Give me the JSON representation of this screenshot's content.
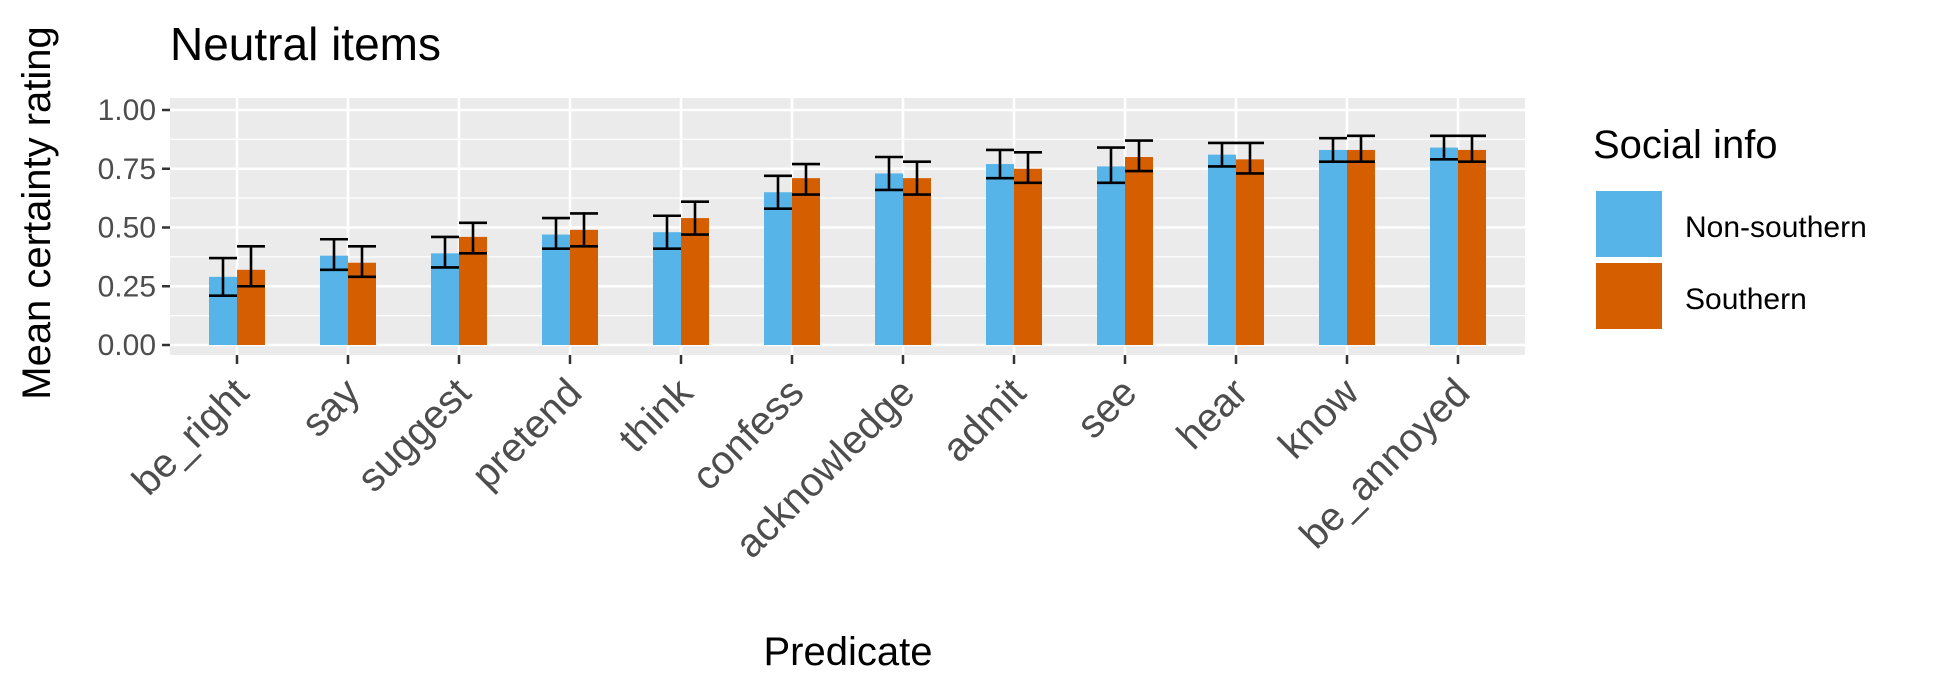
{
  "chart_data": {
    "type": "bar",
    "title": "Neutral items",
    "xlabel": "Predicate",
    "ylabel": "Mean certainty rating",
    "ylim": [
      0,
      1.05
    ],
    "yticks": [
      "0.00",
      "0.25",
      "0.50",
      "0.75",
      "1.00"
    ],
    "grid": true,
    "legend_position": "right",
    "categories": [
      "be_right",
      "say",
      "suggest",
      "pretend",
      "think",
      "confess",
      "acknowledge",
      "admit",
      "see",
      "hear",
      "know",
      "be_annoyed"
    ],
    "series": [
      {
        "name": "Non-southern",
        "color": "#56B4E9",
        "values": [
          0.29,
          0.38,
          0.39,
          0.47,
          0.48,
          0.65,
          0.73,
          0.77,
          0.76,
          0.81,
          0.83,
          0.84
        ],
        "error_low": [
          0.21,
          0.32,
          0.33,
          0.41,
          0.41,
          0.58,
          0.66,
          0.71,
          0.69,
          0.76,
          0.78,
          0.79
        ],
        "error_high": [
          0.37,
          0.45,
          0.46,
          0.54,
          0.55,
          0.72,
          0.8,
          0.83,
          0.84,
          0.86,
          0.88,
          0.89
        ]
      },
      {
        "name": "Southern",
        "color": "#D55E00",
        "values": [
          0.32,
          0.35,
          0.46,
          0.49,
          0.54,
          0.71,
          0.71,
          0.75,
          0.8,
          0.79,
          0.83,
          0.83
        ],
        "error_low": [
          0.25,
          0.29,
          0.39,
          0.42,
          0.47,
          0.64,
          0.64,
          0.69,
          0.74,
          0.73,
          0.78,
          0.78
        ],
        "error_high": [
          0.42,
          0.42,
          0.52,
          0.56,
          0.61,
          0.77,
          0.78,
          0.82,
          0.87,
          0.86,
          0.89,
          0.89
        ]
      }
    ],
    "legend": {
      "title": "Social info",
      "items": [
        "Non-southern",
        "Southern"
      ]
    }
  }
}
